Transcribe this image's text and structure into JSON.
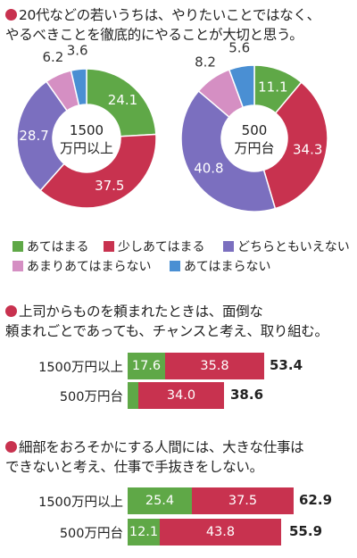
{
  "colors": {
    "green": "#5fa847",
    "crimson": "#c8324f",
    "purple": "#7b6fbf",
    "pink": "#d58fc3",
    "blue": "#4a8fd3"
  },
  "question1": {
    "line1": "20代などの若いうちは、やりたいことではなく、",
    "line2": "やるべきことを徹底的にやることが大切と思う。"
  },
  "question2": {
    "line1": "上司からものを頼まれたときは、面倒な",
    "line2": "頼まれごとであっても、チャンスと考え、取り組む。"
  },
  "question3": {
    "line1": "細部をおろそかにする人間には、大きな仕事は",
    "line2": "できないと考え、仕事で手抜きをしない。"
  },
  "legend": [
    {
      "label": "あてはまる",
      "color": "#5fa847"
    },
    {
      "label": "少しあてはまる",
      "color": "#c8324f"
    },
    {
      "label": "どちらともいえない",
      "color": "#7b6fbf"
    },
    {
      "label": "あまりあてはまらない",
      "color": "#d58fc3"
    },
    {
      "label": "あてはまらない",
      "color": "#4a8fd3"
    }
  ],
  "chart_data": [
    {
      "type": "pie",
      "center_label": [
        "1500",
        "万円以上"
      ],
      "categories": [
        "あてはまる",
        "少しあてはまる",
        "どちらともいえない",
        "あまりあてはまらない",
        "あてはまらない"
      ],
      "values": [
        24.1,
        37.5,
        28.7,
        6.2,
        3.6
      ]
    },
    {
      "type": "pie",
      "center_label": [
        "500",
        "万円台"
      ],
      "categories": [
        "あてはまる",
        "少しあてはまる",
        "どちらともいえない",
        "あまりあてはまらない",
        "あてはまらない"
      ],
      "values": [
        11.1,
        34.3,
        40.8,
        8.2,
        5.6
      ]
    },
    {
      "type": "bar",
      "stacked": true,
      "categories": [
        "1500万円以上",
        "500万円台"
      ],
      "series": [
        {
          "name": "あてはまる",
          "values": [
            17.6,
            4.6
          ]
        },
        {
          "name": "少しあてはまる",
          "values": [
            35.8,
            34.0
          ]
        }
      ],
      "value_labels": [
        [
          "17.6",
          "35.8"
        ],
        [
          "",
          "34.0"
        ]
      ],
      "totals": [
        "53.4",
        "38.6"
      ]
    },
    {
      "type": "bar",
      "stacked": true,
      "categories": [
        "1500万円以上",
        "500万円台"
      ],
      "series": [
        {
          "name": "あてはまる",
          "values": [
            25.4,
            12.1
          ]
        },
        {
          "name": "少しあてはまる",
          "values": [
            37.5,
            43.8
          ]
        }
      ],
      "value_labels": [
        [
          "25.4",
          "37.5"
        ],
        [
          "12.1",
          "43.8"
        ]
      ],
      "totals": [
        "62.9",
        "55.9"
      ]
    }
  ]
}
